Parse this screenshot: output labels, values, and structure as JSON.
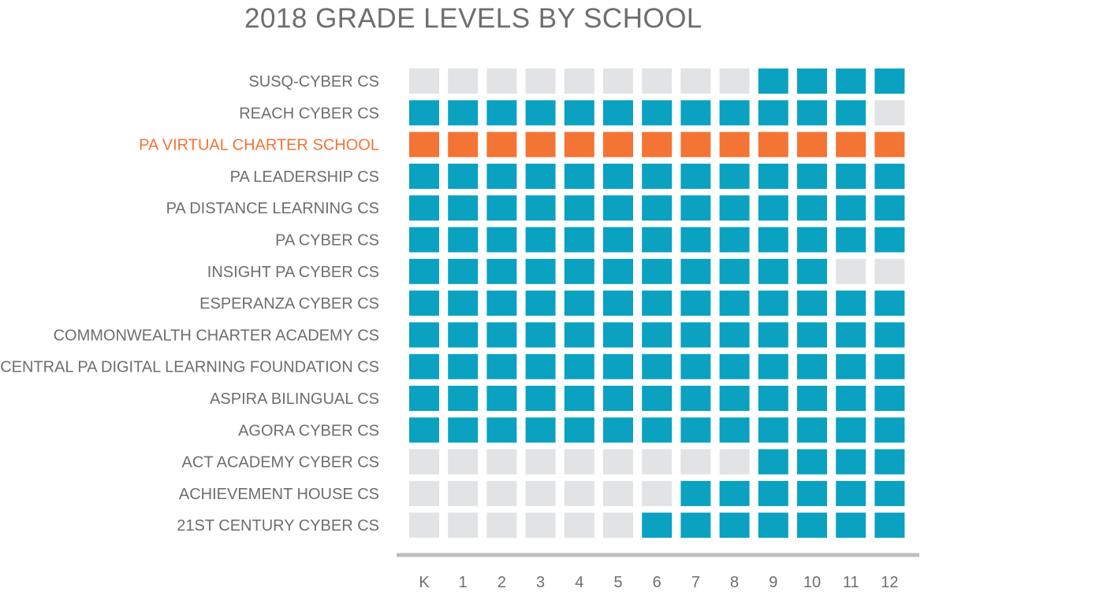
{
  "chart_data": {
    "type": "heatmap",
    "title": "2018 GRADE LEVELS BY SCHOOL",
    "grades": [
      "K",
      "1",
      "2",
      "3",
      "4",
      "5",
      "6",
      "7",
      "8",
      "9",
      "10",
      "11",
      "12"
    ],
    "highlight_school": "PA VIRTUAL CHARTER SCHOOL",
    "colors": {
      "served": "#0aa2c0",
      "not_served": "#e2e3e5",
      "highlight": "#f37435",
      "text": "#6d6e71",
      "axis": "#bcbec0"
    },
    "schools": [
      {
        "name": "SUSQ-CYBER CS",
        "served": [
          0,
          0,
          0,
          0,
          0,
          0,
          0,
          0,
          0,
          1,
          1,
          1,
          1
        ]
      },
      {
        "name": "REACH CYBER CS",
        "served": [
          1,
          1,
          1,
          1,
          1,
          1,
          1,
          1,
          1,
          1,
          1,
          1,
          0
        ]
      },
      {
        "name": "PA VIRTUAL CHARTER SCHOOL",
        "served": [
          1,
          1,
          1,
          1,
          1,
          1,
          1,
          1,
          1,
          1,
          1,
          1,
          1
        ]
      },
      {
        "name": "PA LEADERSHIP CS",
        "served": [
          1,
          1,
          1,
          1,
          1,
          1,
          1,
          1,
          1,
          1,
          1,
          1,
          1
        ]
      },
      {
        "name": "PA DISTANCE LEARNING CS",
        "served": [
          1,
          1,
          1,
          1,
          1,
          1,
          1,
          1,
          1,
          1,
          1,
          1,
          1
        ]
      },
      {
        "name": "PA CYBER CS",
        "served": [
          1,
          1,
          1,
          1,
          1,
          1,
          1,
          1,
          1,
          1,
          1,
          1,
          1
        ]
      },
      {
        "name": "INSIGHT PA CYBER CS",
        "served": [
          1,
          1,
          1,
          1,
          1,
          1,
          1,
          1,
          1,
          1,
          1,
          0,
          0
        ]
      },
      {
        "name": "ESPERANZA CYBER CS",
        "served": [
          1,
          1,
          1,
          1,
          1,
          1,
          1,
          1,
          1,
          1,
          1,
          1,
          1
        ]
      },
      {
        "name": "COMMONWEALTH CHARTER ACADEMY CS",
        "served": [
          1,
          1,
          1,
          1,
          1,
          1,
          1,
          1,
          1,
          1,
          1,
          1,
          1
        ]
      },
      {
        "name": "CENTRAL PA DIGITAL LEARNING FOUNDATION CS",
        "served": [
          1,
          1,
          1,
          1,
          1,
          1,
          1,
          1,
          1,
          1,
          1,
          1,
          1
        ]
      },
      {
        "name": "ASPIRA BILINGUAL CS",
        "served": [
          1,
          1,
          1,
          1,
          1,
          1,
          1,
          1,
          1,
          1,
          1,
          1,
          1
        ]
      },
      {
        "name": "AGORA CYBER CS",
        "served": [
          1,
          1,
          1,
          1,
          1,
          1,
          1,
          1,
          1,
          1,
          1,
          1,
          1
        ]
      },
      {
        "name": "ACT ACADEMY CYBER CS",
        "served": [
          0,
          0,
          0,
          0,
          0,
          0,
          0,
          0,
          0,
          1,
          1,
          1,
          1
        ]
      },
      {
        "name": "ACHIEVEMENT HOUSE CS",
        "served": [
          0,
          0,
          0,
          0,
          0,
          0,
          0,
          1,
          1,
          1,
          1,
          1,
          1
        ]
      },
      {
        "name": "21ST CENTURY CYBER CS",
        "served": [
          0,
          0,
          0,
          0,
          0,
          0,
          1,
          1,
          1,
          1,
          1,
          1,
          1
        ]
      }
    ]
  }
}
